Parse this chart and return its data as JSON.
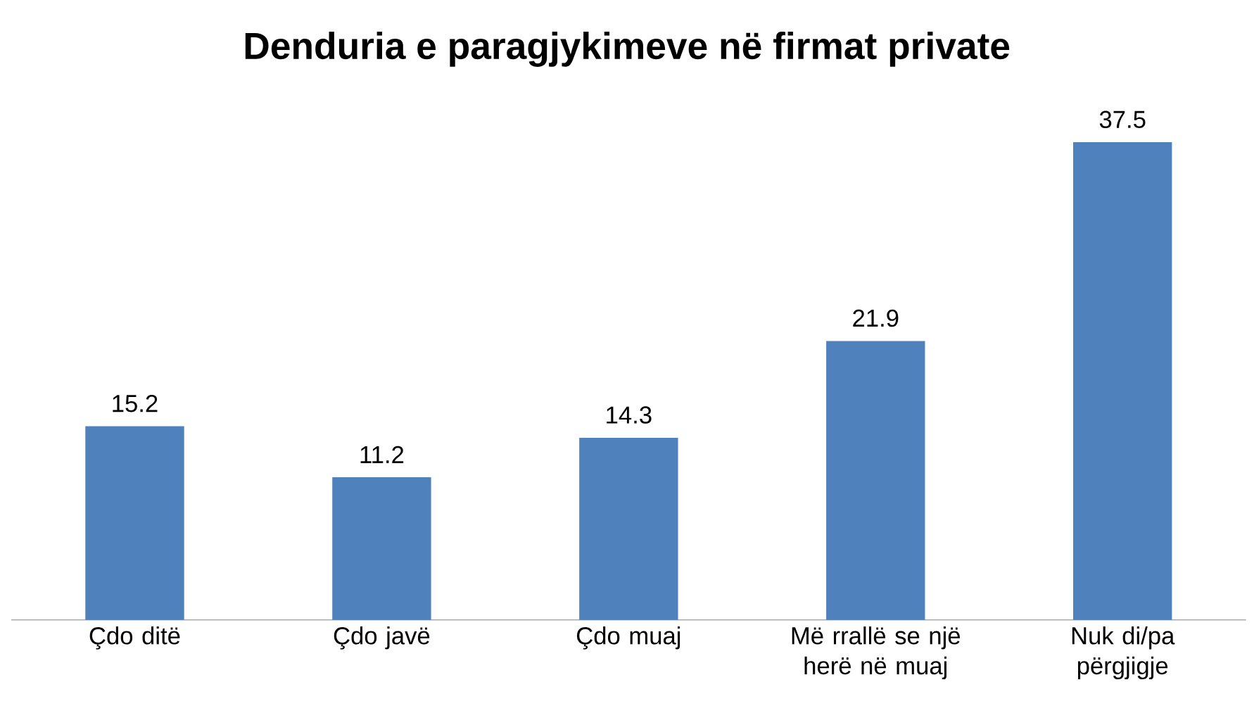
{
  "chart_data": {
    "type": "bar",
    "title": "Denduria e paragjykimeve në firmat private",
    "categories": [
      "Çdo ditë",
      "Çdo javë",
      "Çdo muaj",
      "Më rrallë se një herë në muaj",
      "Nuk di/pa përgjigje"
    ],
    "values": [
      15.2,
      11.2,
      14.3,
      21.9,
      37.5
    ],
    "color": "#4f81bd",
    "data_labels": true
  }
}
